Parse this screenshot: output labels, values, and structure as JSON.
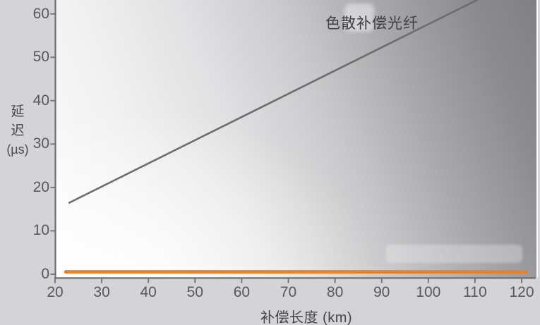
{
  "colors": {
    "page_background": "#d4d4d6",
    "axis": "#6e6f73",
    "tick_text": "#565761",
    "label_text": "#45464b",
    "gray_series": "#6d6d6f",
    "orange_series": "#f0801f"
  },
  "chart_data": {
    "type": "line",
    "title": "",
    "xlabel": "补偿长度 (km)",
    "ylabel": "延迟 (µs)",
    "ylabel_lines": [
      "延",
      "迟",
      "(µs)"
    ],
    "xlim": [
      20,
      123
    ],
    "ylim": [
      0,
      63.3
    ],
    "x_ticks": [
      20,
      30,
      40,
      50,
      60,
      70,
      80,
      90,
      100,
      110,
      120
    ],
    "y_ticks": [
      0,
      10,
      20,
      30,
      40,
      50,
      60
    ],
    "grid": false,
    "legend_position": "none",
    "series": [
      {
        "name": "色散补偿光纤",
        "color": "#6d6d6f",
        "stroke_width": 2.6,
        "points": [
          [
            22.9,
            16.4
          ],
          [
            110.8,
            63.4
          ]
        ]
      },
      {
        "name": "",
        "color": "#f0801f",
        "stroke_width": 5,
        "points": [
          [
            22.3,
            0.55
          ],
          [
            120.9,
            0.55
          ]
        ]
      }
    ]
  }
}
